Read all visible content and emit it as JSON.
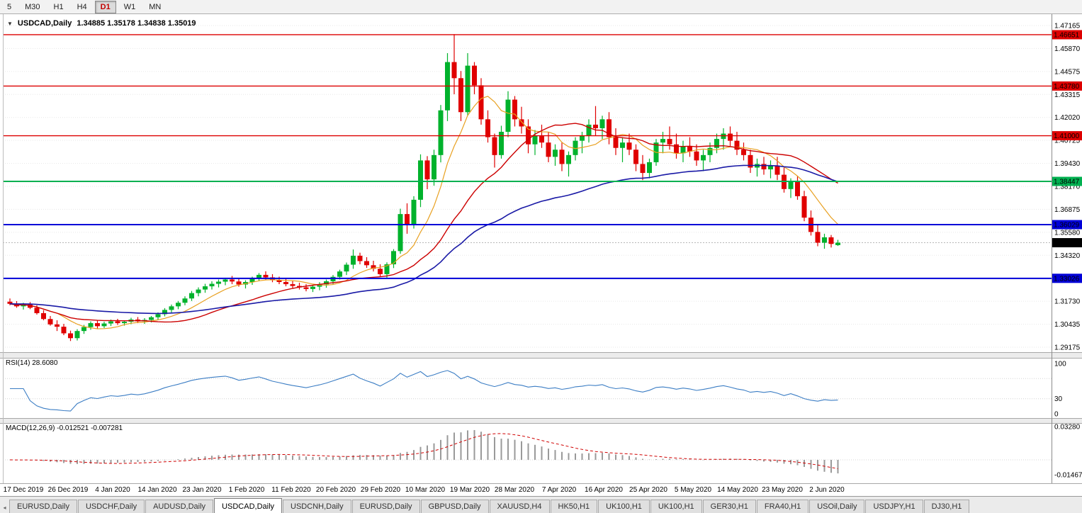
{
  "toolbar": {
    "timeframes": [
      "5",
      "M30",
      "H1",
      "H4",
      "D1",
      "W1",
      "MN"
    ],
    "active": "D1"
  },
  "chart": {
    "symbol": "USDCAD,Daily",
    "ohlc": "1.34885 1.35178 1.34838 1.35019",
    "price_axis": [
      "1.47165",
      "1.45870",
      "1.44575",
      "1.43315",
      "1.42020",
      "1.40725",
      "1.39430",
      "1.38170",
      "1.36875",
      "1.35580",
      "1.34320",
      "1.33025",
      "1.31730",
      "1.30435",
      "1.29175"
    ],
    "hlines": [
      {
        "label": "1.46651",
        "value": 1.46651,
        "color": "#dd0000",
        "w": 1.4
      },
      {
        "label": "1.43780",
        "value": 1.4378,
        "color": "#dd0000",
        "w": 1.4
      },
      {
        "label": "1.41000",
        "value": 1.41,
        "color": "#dd0000",
        "w": 1.4
      },
      {
        "label": "1.38447",
        "value": 1.38447,
        "color": "#00b050",
        "w": 2
      },
      {
        "label": "1.36029",
        "value": 1.36029,
        "color": "#0000d8",
        "w": 2
      },
      {
        "label": "1.33026",
        "value": 1.33026,
        "color": "#0000d8",
        "w": 2
      }
    ],
    "current_price": {
      "label": "1.35019",
      "value": 1.35019
    },
    "dates": [
      "17 Dec 2019",
      "26 Dec 2019",
      "4 Jan 2020",
      "14 Jan 2020",
      "23 Jan 2020",
      "1 Feb 2020",
      "11 Feb 2020",
      "20 Feb 2020",
      "29 Feb 2020",
      "10 Mar 2020",
      "19 Mar 2020",
      "28 Mar 2020",
      "7 Apr 2020",
      "16 Apr 2020",
      "25 Apr 2020",
      "5 May 2020",
      "14 May 2020",
      "23 May 2020",
      "2 Jun 2020"
    ]
  },
  "rsi": {
    "label": "RSI(14) 28.6080",
    "period": 14,
    "axis": [
      {
        "label": "100",
        "value": 100
      },
      {
        "label": "30",
        "value": 30
      },
      {
        "label": "0",
        "value": 0
      }
    ],
    "levels": [
      30,
      70
    ]
  },
  "macd": {
    "label": "MACD(12,26,9) -0.012521 -0.007281",
    "axis": [
      {
        "label": "0.03280",
        "value": 0.0328
      },
      {
        "label": "-0.01467",
        "value": -0.01467
      }
    ]
  },
  "tabs": {
    "active_index": 3,
    "items": [
      "EURUSD,Daily",
      "USDCHF,Daily",
      "AUDUSD,Daily",
      "USDCAD,Daily",
      "USDCNH,Daily",
      "EURUSD,Daily",
      "GBPUSD,Daily",
      "XAUUSD,H4",
      "HK50,H1",
      "UK100,H1",
      "UK100,H1",
      "GER30,H1",
      "FRA40,H1",
      "USOil,Daily",
      "USDJPY,H1",
      "DJ30,H1"
    ],
    "scroll_left_glyph": "◂"
  },
  "chart_data": {
    "type": "candlestick",
    "symbol": "USDCAD",
    "timeframe": "Daily",
    "last_ohlc": {
      "open": 1.34885,
      "high": 1.35178,
      "low": 1.34838,
      "close": 1.35019
    },
    "ma_periods": {
      "fast_sma": 8,
      "mid_sma": 21,
      "slow_ema": 55
    },
    "colors": {
      "bull": "#00b22c",
      "bear": "#e00000",
      "ma_fast": "#e8a020",
      "ma_mid": "#cc0000",
      "ma_slow": "#1a1aa6",
      "rsi": "#3b7dc4",
      "macd_hist": "#9a9a9a",
      "macd_signal": "#d00000",
      "hline_red": "#dd0000",
      "hline_green": "#00b050",
      "hline_blue": "#0000d8"
    },
    "candles": [
      [
        1.3172,
        1.319,
        1.3152,
        1.316
      ],
      [
        1.316,
        1.3175,
        1.3138,
        1.3146
      ],
      [
        1.3146,
        1.3166,
        1.3128,
        1.3158
      ],
      [
        1.3158,
        1.317,
        1.313,
        1.3138
      ],
      [
        1.3138,
        1.3152,
        1.31,
        1.3108
      ],
      [
        1.3108,
        1.3125,
        1.3068,
        1.3075
      ],
      [
        1.3075,
        1.3092,
        1.3038,
        1.3045
      ],
      [
        1.3045,
        1.3068,
        1.3008,
        1.3032
      ],
      [
        1.3032,
        1.3048,
        1.2985,
        1.2995
      ],
      [
        1.2995,
        1.301,
        1.2952,
        1.2968
      ],
      [
        1.2968,
        1.3018,
        1.2955,
        1.3008
      ],
      [
        1.3008,
        1.3042,
        1.2992,
        1.303
      ],
      [
        1.303,
        1.3062,
        1.3015,
        1.3052
      ],
      [
        1.3052,
        1.3066,
        1.3022,
        1.3035
      ],
      [
        1.3035,
        1.306,
        1.3025,
        1.305
      ],
      [
        1.305,
        1.3072,
        1.3036,
        1.3062
      ],
      [
        1.3062,
        1.3076,
        1.3042,
        1.3052
      ],
      [
        1.3052,
        1.3068,
        1.3038,
        1.306
      ],
      [
        1.306,
        1.3082,
        1.3046,
        1.3072
      ],
      [
        1.3072,
        1.3086,
        1.3052,
        1.3062
      ],
      [
        1.3062,
        1.308,
        1.3048,
        1.307
      ],
      [
        1.307,
        1.3092,
        1.3056,
        1.3085
      ],
      [
        1.3085,
        1.3112,
        1.3072,
        1.3102
      ],
      [
        1.3102,
        1.3136,
        1.309,
        1.3126
      ],
      [
        1.3126,
        1.3156,
        1.3112,
        1.3146
      ],
      [
        1.3146,
        1.3176,
        1.313,
        1.3166
      ],
      [
        1.3166,
        1.3202,
        1.3152,
        1.319
      ],
      [
        1.319,
        1.3232,
        1.3176,
        1.322
      ],
      [
        1.322,
        1.3252,
        1.3202,
        1.324
      ],
      [
        1.324,
        1.3272,
        1.3222,
        1.3258
      ],
      [
        1.3258,
        1.3286,
        1.324,
        1.3272
      ],
      [
        1.3272,
        1.3296,
        1.3252,
        1.3284
      ],
      [
        1.3284,
        1.3306,
        1.3264,
        1.3296
      ],
      [
        1.3296,
        1.3316,
        1.327,
        1.3285
      ],
      [
        1.3285,
        1.33,
        1.3256,
        1.3268
      ],
      [
        1.3268,
        1.3292,
        1.3246,
        1.3282
      ],
      [
        1.3282,
        1.3312,
        1.3266,
        1.3302
      ],
      [
        1.3302,
        1.3332,
        1.3286,
        1.3322
      ],
      [
        1.3322,
        1.3342,
        1.3296,
        1.3308
      ],
      [
        1.3308,
        1.3326,
        1.3281,
        1.3292
      ],
      [
        1.3292,
        1.3312,
        1.327,
        1.3282
      ],
      [
        1.3282,
        1.33,
        1.3258,
        1.327
      ],
      [
        1.327,
        1.3288,
        1.3248,
        1.326
      ],
      [
        1.326,
        1.3278,
        1.324,
        1.3252
      ],
      [
        1.3252,
        1.327,
        1.323,
        1.3243
      ],
      [
        1.3243,
        1.3266,
        1.3226,
        1.3256
      ],
      [
        1.3256,
        1.3281,
        1.3236,
        1.3269
      ],
      [
        1.3269,
        1.3296,
        1.325,
        1.3286
      ],
      [
        1.3286,
        1.3321,
        1.3271,
        1.3311
      ],
      [
        1.3311,
        1.3351,
        1.3296,
        1.3341
      ],
      [
        1.3341,
        1.3391,
        1.3321,
        1.3379
      ],
      [
        1.3379,
        1.3464,
        1.3356,
        1.3429
      ],
      [
        1.3429,
        1.3446,
        1.3381,
        1.3399
      ],
      [
        1.3399,
        1.3421,
        1.3361,
        1.3376
      ],
      [
        1.3376,
        1.3401,
        1.3341,
        1.3356
      ],
      [
        1.3356,
        1.3381,
        1.3311,
        1.3326
      ],
      [
        1.3326,
        1.3392,
        1.3306,
        1.3381
      ],
      [
        1.3381,
        1.3466,
        1.336,
        1.3455
      ],
      [
        1.3455,
        1.3692,
        1.344,
        1.3662
      ],
      [
        1.3662,
        1.3722,
        1.3552,
        1.3606
      ],
      [
        1.3606,
        1.3762,
        1.3581,
        1.3742
      ],
      [
        1.3742,
        1.3996,
        1.3701,
        1.3962
      ],
      [
        1.3962,
        1.3986,
        1.3801,
        1.3856
      ],
      [
        1.3856,
        1.4022,
        1.3821,
        1.3992
      ],
      [
        1.3992,
        1.4272,
        1.3951,
        1.4242
      ],
      [
        1.4242,
        1.4562,
        1.4182,
        1.4512
      ],
      [
        1.4512,
        1.4668,
        1.4332,
        1.4422
      ],
      [
        1.4422,
        1.4462,
        1.4182,
        1.4232
      ],
      [
        1.4232,
        1.4562,
        1.4212,
        1.4492
      ],
      [
        1.4492,
        1.4512,
        1.4332,
        1.4382
      ],
      [
        1.4382,
        1.4422,
        1.4162,
        1.4192
      ],
      [
        1.4192,
        1.4242,
        1.4062,
        1.4092
      ],
      [
        1.4092,
        1.4112,
        1.3922,
        1.3992
      ],
      [
        1.3992,
        1.4156,
        1.3972,
        1.4122
      ],
      [
        1.4122,
        1.4349,
        1.4092,
        1.4302
      ],
      [
        1.4302,
        1.4322,
        1.4152,
        1.4192
      ],
      [
        1.4192,
        1.4262,
        1.4112,
        1.4152
      ],
      [
        1.4152,
        1.4192,
        1.4002,
        1.4052
      ],
      [
        1.4052,
        1.4132,
        1.3992,
        1.4102
      ],
      [
        1.4102,
        1.4162,
        1.4032,
        1.4062
      ],
      [
        1.4062,
        1.4122,
        1.3952,
        1.3982
      ],
      [
        1.3982,
        1.4052,
        1.3932,
        1.4022
      ],
      [
        1.4022,
        1.4062,
        1.3902,
        1.3942
      ],
      [
        1.3942,
        1.4012,
        1.3872,
        1.3992
      ],
      [
        1.3992,
        1.4092,
        1.3962,
        1.4072
      ],
      [
        1.4072,
        1.4122,
        1.4002,
        1.4102
      ],
      [
        1.4102,
        1.4192,
        1.4062,
        1.4162
      ],
      [
        1.4162,
        1.4266,
        1.4102,
        1.4142
      ],
      [
        1.4142,
        1.4212,
        1.4082,
        1.4192
      ],
      [
        1.4192,
        1.4232,
        1.4052,
        1.4092
      ],
      [
        1.4092,
        1.4142,
        1.3992,
        1.4032
      ],
      [
        1.4032,
        1.4092,
        1.3952,
        1.4062
      ],
      [
        1.4062,
        1.4112,
        1.3992,
        1.4022
      ],
      [
        1.4022,
        1.4052,
        1.3902,
        1.3942
      ],
      [
        1.3942,
        1.3992,
        1.3852,
        1.3892
      ],
      [
        1.3892,
        1.3972,
        1.3862,
        1.3952
      ],
      [
        1.3952,
        1.4082,
        1.3932,
        1.4062
      ],
      [
        1.4062,
        1.4122,
        1.4002,
        1.4082
      ],
      [
        1.4082,
        1.4152,
        1.4022,
        1.4052
      ],
      [
        1.4052,
        1.4112,
        1.3972,
        1.4002
      ],
      [
        1.4002,
        1.4072,
        1.3952,
        1.4042
      ],
      [
        1.4042,
        1.4092,
        1.3982,
        1.4012
      ],
      [
        1.4012,
        1.4052,
        1.3932,
        1.3962
      ],
      [
        1.3962,
        1.4022,
        1.3902,
        1.3992
      ],
      [
        1.3992,
        1.4062,
        1.3952,
        1.4032
      ],
      [
        1.4032,
        1.4112,
        1.4002,
        1.4082
      ],
      [
        1.4082,
        1.4142,
        1.4022,
        1.4112
      ],
      [
        1.4112,
        1.4152,
        1.4042,
        1.4072
      ],
      [
        1.4072,
        1.4122,
        1.3992,
        1.4022
      ],
      [
        1.4022,
        1.4062,
        1.3962,
        1.3992
      ],
      [
        1.3992,
        1.4022,
        1.3892,
        1.3922
      ],
      [
        1.3922,
        1.3972,
        1.3872,
        1.3942
      ],
      [
        1.3942,
        1.3982,
        1.3882,
        1.3912
      ],
      [
        1.3912,
        1.3962,
        1.3862,
        1.3932
      ],
      [
        1.3932,
        1.3982,
        1.3852,
        1.3882
      ],
      [
        1.3882,
        1.3922,
        1.3782,
        1.3802
      ],
      [
        1.3802,
        1.3862,
        1.3752,
        1.3842
      ],
      [
        1.3842,
        1.3872,
        1.3742,
        1.3762
      ],
      [
        1.3762,
        1.3792,
        1.3622,
        1.3642
      ],
      [
        1.3642,
        1.3682,
        1.3542,
        1.3562
      ],
      [
        1.3562,
        1.3602,
        1.3482,
        1.3502
      ],
      [
        1.3502,
        1.3552,
        1.3468,
        1.3532
      ],
      [
        1.3532,
        1.3545,
        1.3475,
        1.3495
      ],
      [
        1.34885,
        1.35178,
        1.34838,
        1.35019
      ]
    ]
  }
}
